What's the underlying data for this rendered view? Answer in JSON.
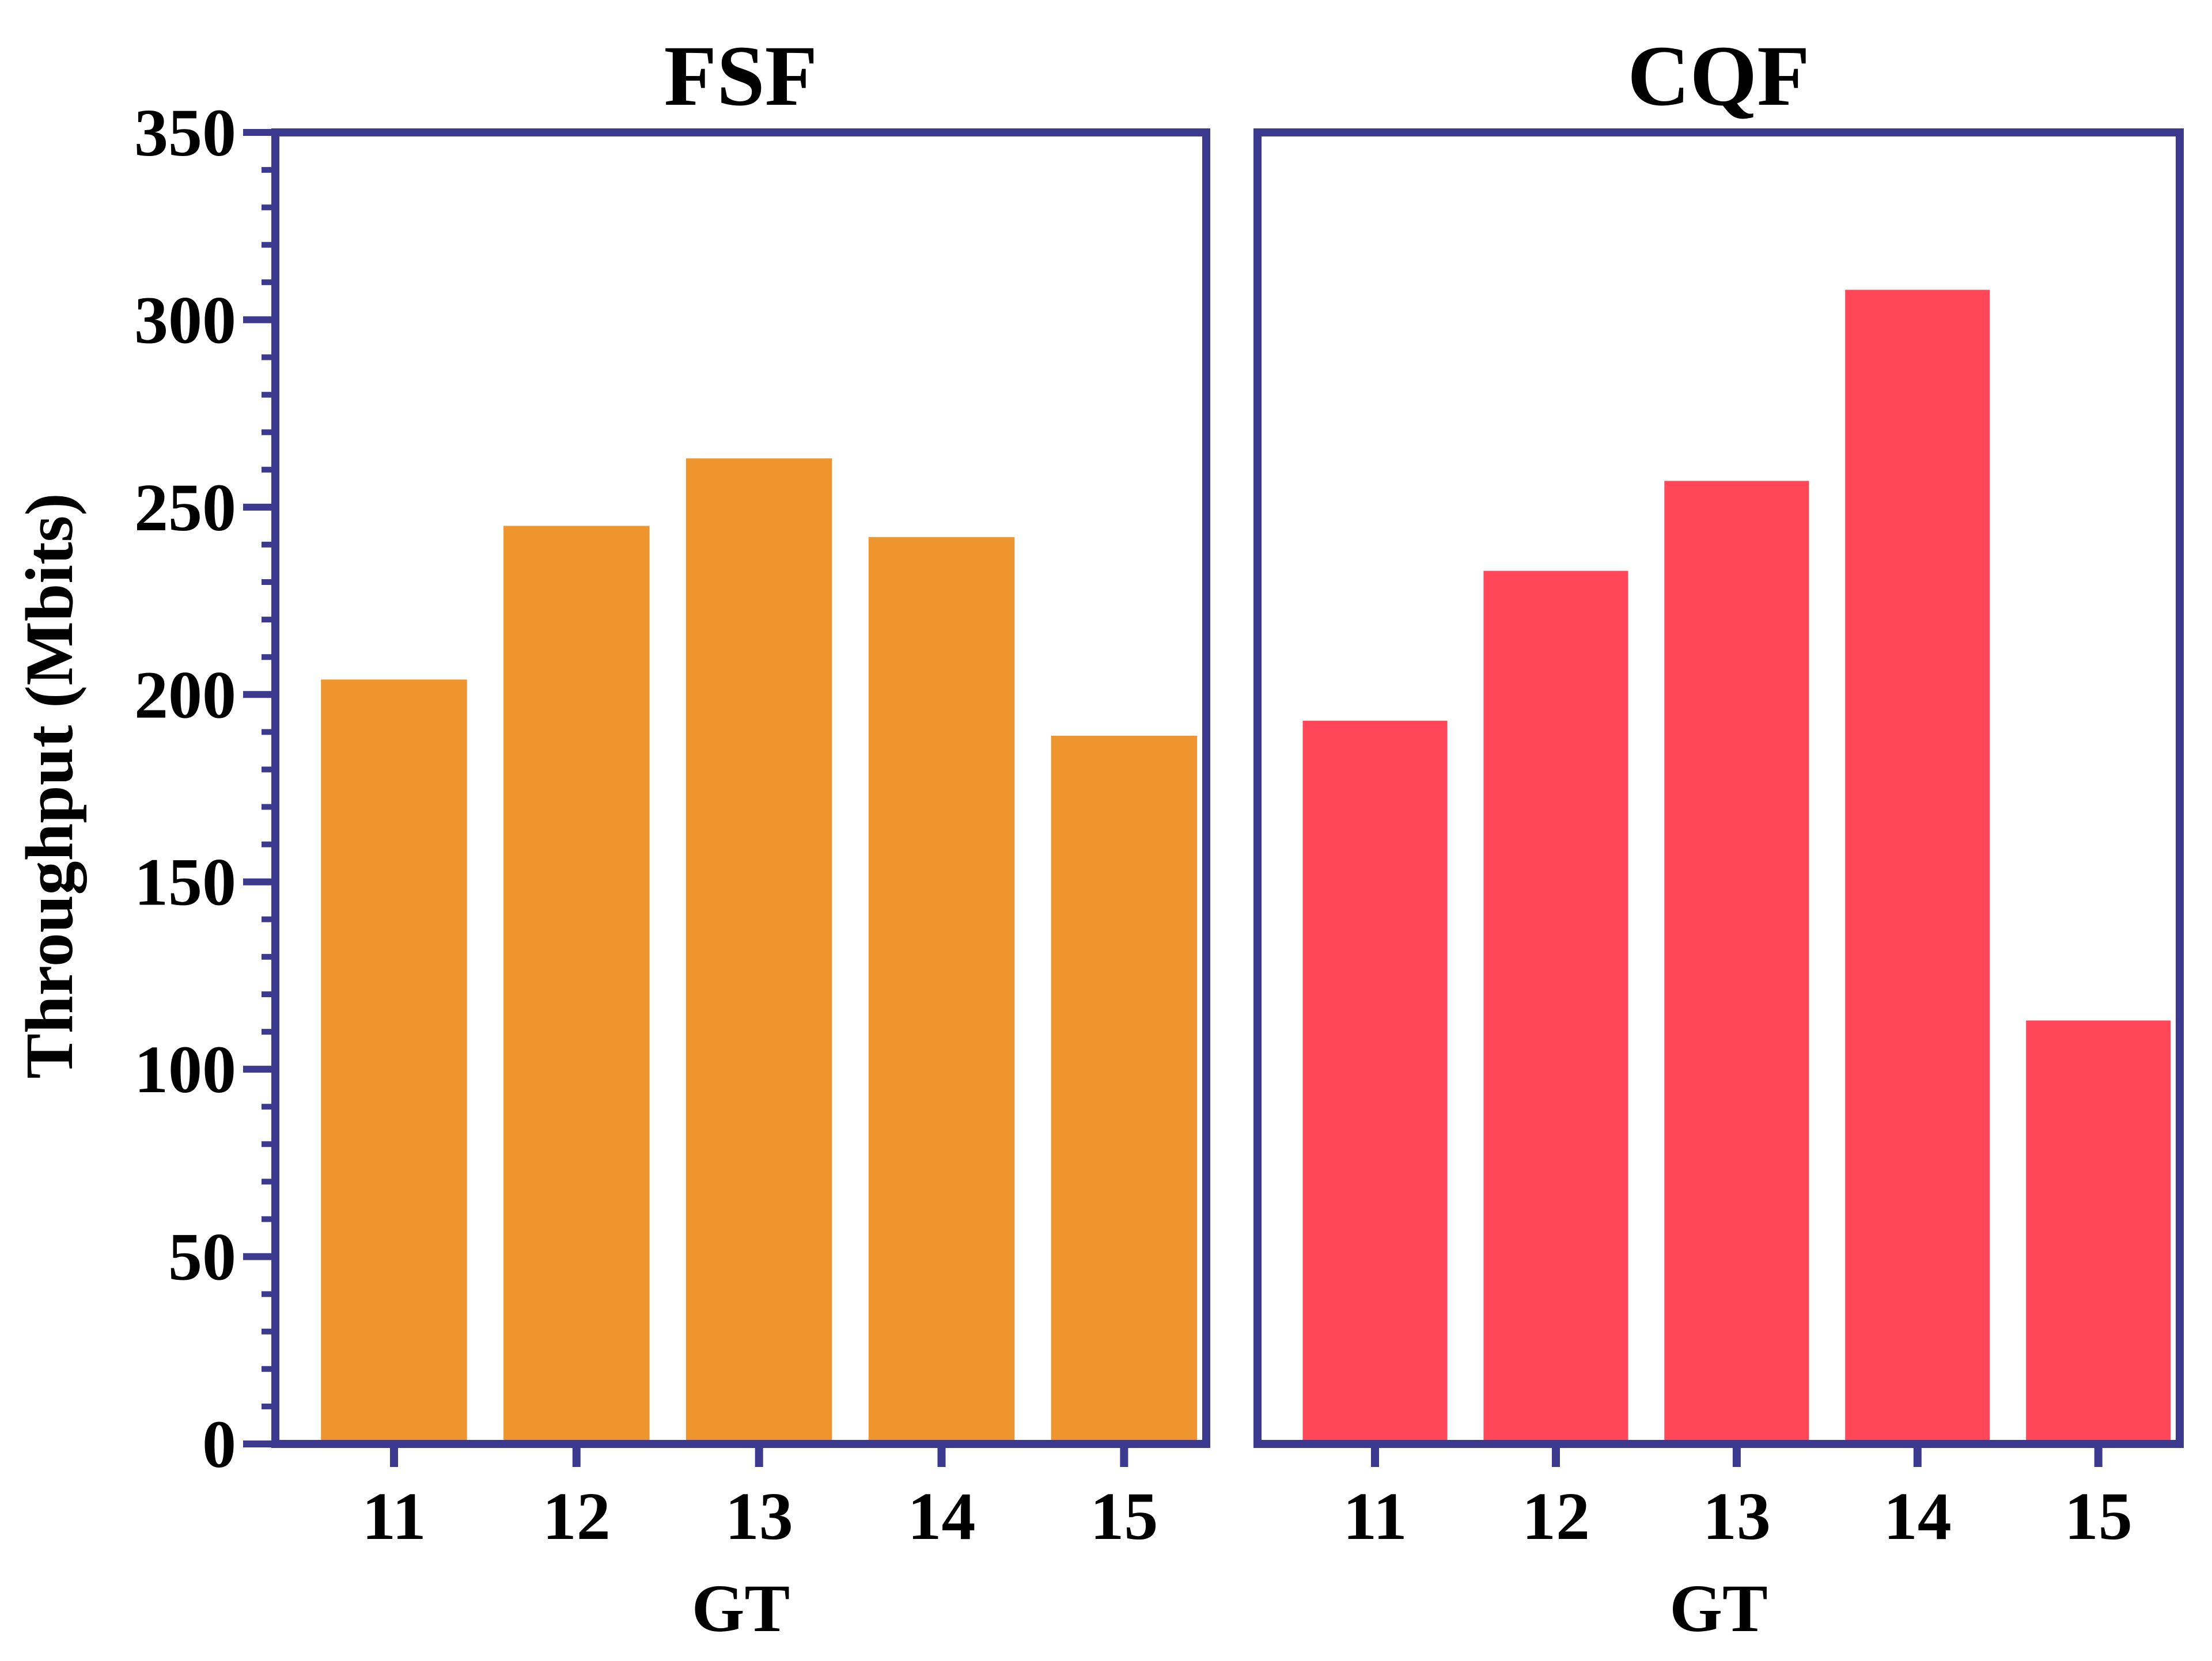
{
  "colors": {
    "frame": "#3b3a8f",
    "fsf_bar": "#ef952f",
    "cqf_bar": "#ff4759"
  },
  "ylabel": "Throughput (Mbits)",
  "chart_data": [
    {
      "type": "bar",
      "title": "FSF",
      "xlabel": "GT",
      "ylabel": "Throughput (Mbits)",
      "categories": [
        "11",
        "12",
        "13",
        "14",
        "15"
      ],
      "values": [
        204,
        245,
        263,
        242,
        189
      ],
      "ylim": [
        0,
        350
      ],
      "yticks": [
        "0",
        "50",
        "100",
        "150",
        "200",
        "250",
        "300",
        "350"
      ],
      "color": "#ef952f",
      "grid": false
    },
    {
      "type": "bar",
      "title": "CQF",
      "xlabel": "GT",
      "ylabel": "",
      "categories": [
        "11",
        "12",
        "13",
        "14",
        "15"
      ],
      "values": [
        193,
        233,
        257,
        308,
        113
      ],
      "ylim": [
        0,
        350
      ],
      "color": "#ff4759",
      "grid": false
    }
  ]
}
